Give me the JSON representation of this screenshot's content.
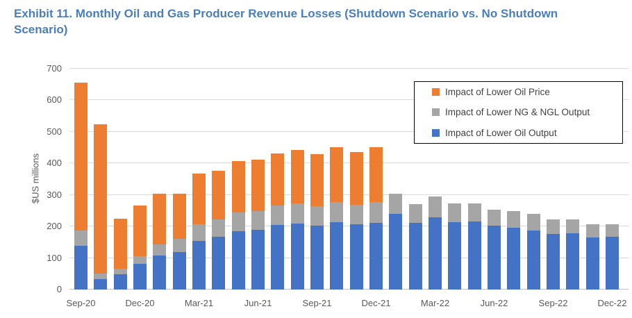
{
  "page": {
    "title": "Exhibit 11. Monthly Oil and Gas Producer Revenue Losses (Shutdown Scenario vs. No Shutdown Scenario)",
    "title_color": "#4A7EBB",
    "background_color": "#FFFFFF"
  },
  "chart_data": {
    "type": "bar",
    "stacked": true,
    "title": "Exhibit 11. Monthly Oil and Gas Producer Revenue Losses (Shutdown Scenario vs. No Shutdown Scenario)",
    "xlabel": "",
    "ylabel": "$US millions",
    "ylim": [
      0,
      700
    ],
    "ytick_step": 100,
    "ytick_labels": [
      "0",
      "100",
      "200",
      "300",
      "400",
      "500",
      "600",
      "700"
    ],
    "grid": "horizontal",
    "gridline_color": "#D9D9D9",
    "axis_line_color": "#BFBFBF",
    "tick_text_color": "#595959",
    "legend_position": "top-right",
    "categories": [
      "Sep-20",
      "Oct-20",
      "Nov-20",
      "Dec-20",
      "Jan-21",
      "Feb-21",
      "Mar-21",
      "Apr-21",
      "May-21",
      "Jun-21",
      "Jul-21",
      "Aug-21",
      "Sep-21",
      "Oct-21",
      "Nov-21",
      "Dec-21",
      "Jan-22",
      "Feb-22",
      "Mar-22",
      "Apr-22",
      "May-22",
      "Jun-22",
      "Jul-22",
      "Aug-22",
      "Sep-22",
      "Oct-22",
      "Nov-22",
      "Dec-22"
    ],
    "x_tick_indices": [
      0,
      3,
      6,
      9,
      12,
      15,
      18,
      21,
      24,
      27
    ],
    "x_tick_labels": [
      "Sep-20",
      "Dec-20",
      "Mar-21",
      "Jun-21",
      "Sep-21",
      "Dec-21",
      "Mar-22",
      "Jun-22",
      "Sep-22",
      "Dec-22"
    ],
    "series": [
      {
        "name": "Impact of Lower Oil Output",
        "color": "#4472C4",
        "values": [
          138,
          34,
          48,
          82,
          107,
          120,
          155,
          167,
          186,
          190,
          204,
          210,
          203,
          214,
          208,
          211,
          240,
          212,
          230,
          214,
          215,
          202,
          197,
          187,
          176,
          178,
          166,
          167
        ]
      },
      {
        "name": "Impact of Lower NG & NGL Output",
        "color": "#A5A5A5",
        "values": [
          50,
          16,
          17,
          24,
          37,
          40,
          51,
          55,
          58,
          58,
          62,
          64,
          62,
          64,
          61,
          66,
          64,
          58,
          64,
          60,
          58,
          52,
          52,
          53,
          46,
          44,
          42,
          41
        ]
      },
      {
        "name": "Impact of Lower Oil Price",
        "color": "#ED7D31",
        "values": [
          468,
          473,
          159,
          161,
          159,
          143,
          162,
          155,
          163,
          163,
          166,
          169,
          165,
          173,
          167,
          174,
          0,
          0,
          0,
          0,
          0,
          0,
          0,
          0,
          0,
          0,
          0,
          0
        ]
      }
    ],
    "legend": {
      "entries": [
        {
          "label": "Impact of Lower Oil Price",
          "color": "#ED7D31"
        },
        {
          "label": "Impact of Lower NG & NGL Output",
          "color": "#A5A5A5"
        },
        {
          "label": "Impact of Lower Oil Output",
          "color": "#4472C4"
        }
      ]
    }
  }
}
